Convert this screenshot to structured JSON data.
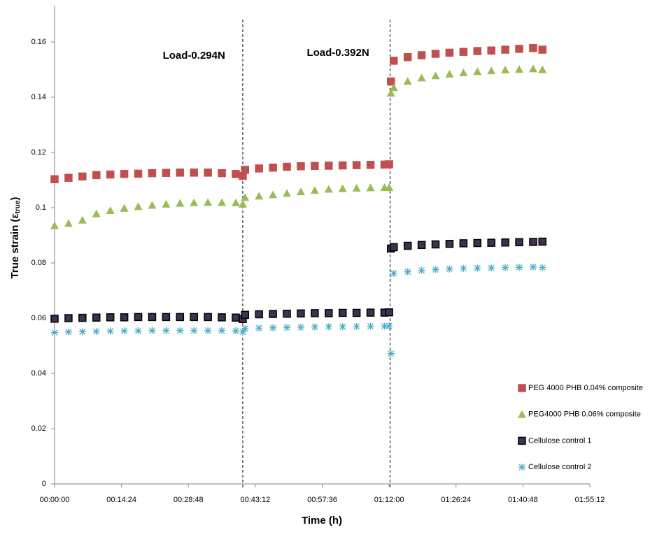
{
  "chart_data": {
    "type": "scatter",
    "x_label": "Time (h)",
    "y_label": "True strain (ε",
    "y_label_sub": "true",
    "y_label_end": ")",
    "x": [
      0,
      3,
      6,
      9,
      12,
      15,
      18,
      21,
      24,
      27,
      30,
      33,
      36,
      39,
      40.5,
      41,
      44,
      47,
      50,
      53,
      56,
      59,
      62,
      65,
      68,
      71,
      72,
      72.4,
      73,
      76,
      79,
      82,
      85,
      88,
      91,
      94,
      97,
      100,
      103,
      105
    ],
    "series": [
      {
        "name": "PEG 4000 PHB 0.04% composite",
        "color": "#c0504d",
        "marker": "square",
        "values": [
          0.1103,
          0.1108,
          0.1113,
          0.1118,
          0.112,
          0.1122,
          0.1123,
          0.1125,
          0.1126,
          0.1127,
          0.1127,
          0.1127,
          0.1125,
          0.1122,
          0.1115,
          0.1137,
          0.1142,
          0.1145,
          0.1148,
          0.115,
          0.1151,
          0.1152,
          0.1153,
          0.1154,
          0.1155,
          0.1156,
          0.1157,
          0.1457,
          0.1532,
          0.1545,
          0.1552,
          0.1557,
          0.1561,
          0.1564,
          0.1567,
          0.1569,
          0.1572,
          0.1575,
          0.1578,
          0.1572
        ]
      },
      {
        "name": "PEG4000 PHB 0.06% composite",
        "color": "#9bbb59",
        "marker": "triangle",
        "values": [
          0.0935,
          0.0943,
          0.0955,
          0.0978,
          0.099,
          0.0998,
          0.1004,
          0.1009,
          0.1013,
          0.1016,
          0.1018,
          0.1019,
          0.1019,
          0.1018,
          0.1013,
          0.1037,
          0.1042,
          0.1047,
          0.1052,
          0.1058,
          0.1063,
          0.1067,
          0.1069,
          0.1071,
          0.1072,
          0.1073,
          0.1073,
          0.1415,
          0.1435,
          0.1458,
          0.147,
          0.1478,
          0.1484,
          0.1489,
          0.1493,
          0.1496,
          0.1499,
          0.1501,
          0.1503,
          0.15
        ]
      },
      {
        "name": "Cellulose control 1",
        "color": "#403152",
        "marker": "square",
        "values": [
          0.0598,
          0.06,
          0.0601,
          0.0602,
          0.0603,
          0.0603,
          0.0604,
          0.0604,
          0.0604,
          0.0604,
          0.0604,
          0.0604,
          0.0603,
          0.0602,
          0.0597,
          0.0612,
          0.0614,
          0.0615,
          0.0616,
          0.0617,
          0.0618,
          0.0618,
          0.0619,
          0.0619,
          0.062,
          0.062,
          0.0621,
          0.0852,
          0.0857,
          0.0862,
          0.0865,
          0.0867,
          0.0869,
          0.0871,
          0.0872,
          0.0873,
          0.0874,
          0.0875,
          0.0876,
          0.0877
        ]
      },
      {
        "name": "Cellulose control 2",
        "color": "#4bacc6",
        "marker": "star",
        "values": [
          0.0548,
          0.055,
          0.0551,
          0.0552,
          0.0553,
          0.0554,
          0.0554,
          0.0555,
          0.0555,
          0.0555,
          0.0555,
          0.0555,
          0.0555,
          0.0554,
          0.055,
          0.0562,
          0.0564,
          0.0565,
          0.0566,
          0.0567,
          0.0568,
          0.0569,
          0.0569,
          0.057,
          0.0571,
          0.0571,
          0.0572,
          0.0472,
          0.0762,
          0.0768,
          0.0773,
          0.0776,
          0.0778,
          0.078,
          0.0781,
          0.0782,
          0.0783,
          0.0784,
          0.0785,
          0.0783
        ]
      }
    ],
    "xlim": [
      0,
      115.2
    ],
    "xticks": [
      {
        "value": 0,
        "label": "00:00:00"
      },
      {
        "value": 14.4,
        "label": "00:14:24"
      },
      {
        "value": 28.8,
        "label": "00:28:48"
      },
      {
        "value": 43.2,
        "label": "00:43:12"
      },
      {
        "value": 57.6,
        "label": "00:57:36"
      },
      {
        "value": 72,
        "label": "01:12:00"
      },
      {
        "value": 86.4,
        "label": "01:26:24"
      },
      {
        "value": 100.8,
        "label": "01:40:48"
      },
      {
        "value": 115.2,
        "label": "01:55:12"
      }
    ],
    "ylim": [
      0,
      0.17
    ],
    "yticks": [
      0,
      0.02,
      0.04,
      0.06,
      0.08,
      0.1,
      0.12,
      0.14,
      0.16
    ],
    "grid": false,
    "vlines": [
      40.5,
      72.2
    ],
    "annotations": [
      {
        "text": "Load-0.294N",
        "x": 30
      },
      {
        "text": "Load-0.392N",
        "x": 61
      }
    ],
    "legend": "right"
  }
}
